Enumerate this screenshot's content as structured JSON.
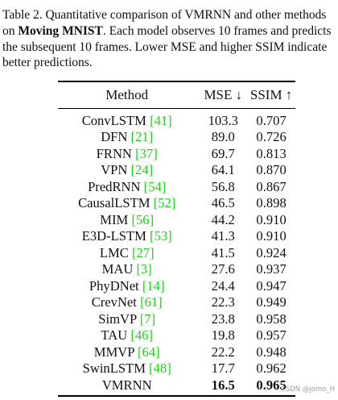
{
  "caption": {
    "prefix": "Table 2. Quantitative comparison of VMRNN and other methods on ",
    "dataset": "Moving MNIST",
    "suffix": ". Each model observes 10 frames and predicts the subsequent 10 frames. Lower MSE and higher SSIM indicate better predictions."
  },
  "table": {
    "headers": {
      "method": "Method",
      "mse": "MSE ↓",
      "ssim": "SSIM ↑"
    },
    "rows": [
      {
        "name": "ConvLSTM",
        "cite": "[41]",
        "mse": "103.3",
        "ssim": "0.707"
      },
      {
        "name": "DFN",
        "cite": "[21]",
        "mse": "89.0",
        "ssim": "0.726"
      },
      {
        "name": "FRNN",
        "cite": "[37]",
        "mse": "69.7",
        "ssim": "0.813"
      },
      {
        "name": "VPN",
        "cite": "[24]",
        "mse": "64.1",
        "ssim": "0.870"
      },
      {
        "name": "PredRNN",
        "cite": "[54]",
        "mse": "56.8",
        "ssim": "0.867"
      },
      {
        "name": "CausalLSTM",
        "cite": "[52]",
        "mse": "46.5",
        "ssim": "0.898"
      },
      {
        "name": "MIM",
        "cite": "[56]",
        "mse": "44.2",
        "ssim": "0.910"
      },
      {
        "name": "E3D-LSTM",
        "cite": "[53]",
        "mse": "41.3",
        "ssim": "0.910"
      },
      {
        "name": "LMC",
        "cite": "[27]",
        "mse": "41.5",
        "ssim": "0.924"
      },
      {
        "name": "MAU",
        "cite": "[3]",
        "mse": "27.6",
        "ssim": "0.937"
      },
      {
        "name": "PhyDNet",
        "cite": "[14]",
        "mse": "24.4",
        "ssim": "0.947"
      },
      {
        "name": "CrevNet",
        "cite": "[61]",
        "mse": "22.3",
        "ssim": "0.949"
      },
      {
        "name": "SimVP",
        "cite": "[7]",
        "mse": "23.8",
        "ssim": "0.958"
      },
      {
        "name": "TAU",
        "cite": "[46]",
        "mse": "19.8",
        "ssim": "0.957"
      },
      {
        "name": "MMVP",
        "cite": "[64]",
        "mse": "22.2",
        "ssim": "0.948"
      },
      {
        "name": "SwinLSTM",
        "cite": "[48]",
        "mse": "17.7",
        "ssim": "0.962"
      },
      {
        "name": "VMRNN",
        "cite": "",
        "mse": "16.5",
        "ssim": "0.965",
        "best": true
      }
    ]
  },
  "watermark": "CSDN @jomo_H",
  "colors": {
    "citation": "#1fcf1f",
    "text": "#111111",
    "watermark": "#9a9a9a"
  }
}
